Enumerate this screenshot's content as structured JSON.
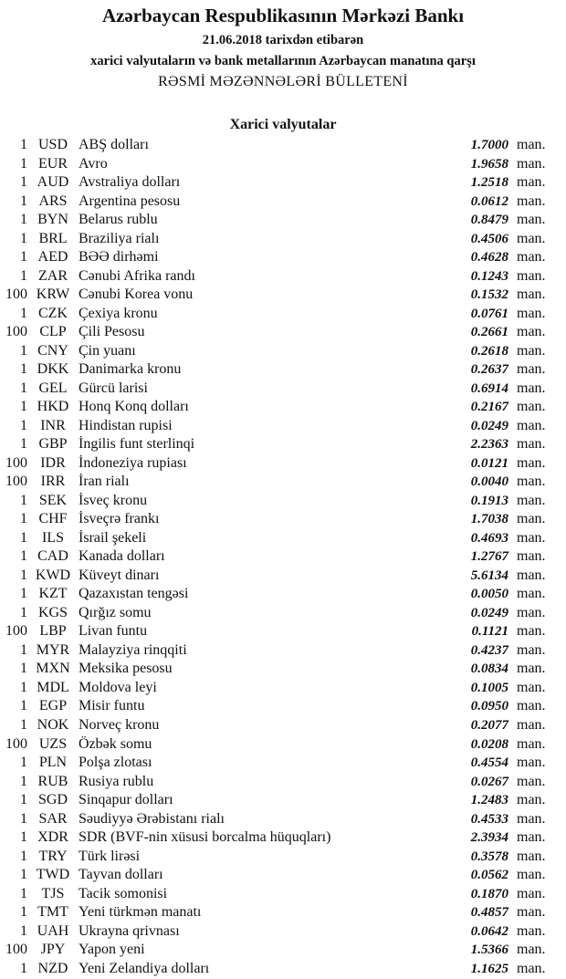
{
  "header": {
    "title": "Azərbaycan Respublikasının Mərkəzi Bankı",
    "date_line": "21.06.2018  tarixdən etibarən",
    "subtitle": "xarici valyutaların və bank metallarının Azərbaycan manatına qarşı",
    "bulletin": "RƏSMİ MƏZƏNNƏLƏRİ BÜLLETENİ"
  },
  "section_title": "Xarici valyutalar",
  "unit": "man.",
  "rows": [
    {
      "amount": "1",
      "code": "USD",
      "name": "ABŞ dolları",
      "rate": "1.7000"
    },
    {
      "amount": "1",
      "code": "EUR",
      "name": "Avro",
      "rate": "1.9658"
    },
    {
      "amount": "1",
      "code": "AUD",
      "name": "Avstraliya dolları",
      "rate": "1.2518"
    },
    {
      "amount": "1",
      "code": "ARS",
      "name": "Argentina pesosu",
      "rate": "0.0612"
    },
    {
      "amount": "1",
      "code": "BYN",
      "name": "Belarus rublu",
      "rate": "0.8479"
    },
    {
      "amount": "1",
      "code": "BRL",
      "name": "Braziliya rialı",
      "rate": "0.4506"
    },
    {
      "amount": "1",
      "code": "AED",
      "name": "BƏƏ dirhəmi",
      "rate": "0.4628"
    },
    {
      "amount": "1",
      "code": "ZAR",
      "name": "Cənubi Afrika randı",
      "rate": "0.1243"
    },
    {
      "amount": "100",
      "code": "KRW",
      "name": "Cənubi Korea vonu",
      "rate": "0.1532"
    },
    {
      "amount": "1",
      "code": "CZK",
      "name": "Çexiya kronu",
      "rate": "0.0761"
    },
    {
      "amount": "100",
      "code": "CLP",
      "name": "Çili Pesosu",
      "rate": "0.2661"
    },
    {
      "amount": "1",
      "code": "CNY",
      "name": "Çin yuanı",
      "rate": "0.2618"
    },
    {
      "amount": "1",
      "code": "DKK",
      "name": "Danimarka kronu",
      "rate": "0.2637"
    },
    {
      "amount": "1",
      "code": "GEL",
      "name": "Gürcü larisi",
      "rate": "0.6914"
    },
    {
      "amount": "1",
      "code": "HKD",
      "name": "Honq Konq dolları",
      "rate": "0.2167"
    },
    {
      "amount": "1",
      "code": "INR",
      "name": "Hindistan rupisi",
      "rate": "0.0249"
    },
    {
      "amount": "1",
      "code": "GBP",
      "name": "İngilis funt sterlinqi",
      "rate": "2.2363"
    },
    {
      "amount": "100",
      "code": "IDR",
      "name": "İndoneziya rupiası",
      "rate": "0.0121"
    },
    {
      "amount": "100",
      "code": "IRR",
      "name": "İran rialı",
      "rate": "0.0040"
    },
    {
      "amount": "1",
      "code": "SEK",
      "name": "İsveç kronu",
      "rate": "0.1913"
    },
    {
      "amount": "1",
      "code": "CHF",
      "name": "İsveçrə frankı",
      "rate": "1.7038"
    },
    {
      "amount": "1",
      "code": "ILS",
      "name": "İsrail şekeli",
      "rate": "0.4693"
    },
    {
      "amount": "1",
      "code": "CAD",
      "name": "Kanada dolları",
      "rate": "1.2767"
    },
    {
      "amount": "1",
      "code": "KWD",
      "name": "Küveyt dinarı",
      "rate": "5.6134"
    },
    {
      "amount": "1",
      "code": "KZT",
      "name": "Qazaxıstan tengəsi",
      "rate": "0.0050"
    },
    {
      "amount": "1",
      "code": "KGS",
      "name": "Qırğız somu",
      "rate": "0.0249"
    },
    {
      "amount": "100",
      "code": "LBP",
      "name": "Livan funtu",
      "rate": "0.1121"
    },
    {
      "amount": "1",
      "code": "MYR",
      "name": "Malayziya rinqqiti",
      "rate": "0.4237"
    },
    {
      "amount": "1",
      "code": "MXN",
      "name": "Meksika pesosu",
      "rate": "0.0834"
    },
    {
      "amount": "1",
      "code": "MDL",
      "name": "Moldova leyi",
      "rate": "0.1005"
    },
    {
      "amount": "1",
      "code": "EGP",
      "name": "Misir funtu",
      "rate": "0.0950"
    },
    {
      "amount": "1",
      "code": "NOK",
      "name": "Norveç kronu",
      "rate": "0.2077"
    },
    {
      "amount": "100",
      "code": "UZS",
      "name": "Özbək somu",
      "rate": "0.0208"
    },
    {
      "amount": "1",
      "code": "PLN",
      "name": "Polşa zlotası",
      "rate": "0.4554"
    },
    {
      "amount": "1",
      "code": "RUB",
      "name": "Rusiya rublu",
      "rate": "0.0267"
    },
    {
      "amount": "1",
      "code": "SGD",
      "name": "Sinqapur dolları",
      "rate": "1.2483"
    },
    {
      "amount": "1",
      "code": "SAR",
      "name": "Səudiyyə Ərəbistanı rialı",
      "rate": "0.4533"
    },
    {
      "amount": "1",
      "code": "XDR",
      "name": "SDR (BVF-nin xüsusi borcalma hüquqları)",
      "rate": "2.3934"
    },
    {
      "amount": "1",
      "code": "TRY",
      "name": "Türk lirəsi",
      "rate": "0.3578"
    },
    {
      "amount": "1",
      "code": "TWD",
      "name": "Tayvan dolları",
      "rate": "0.0562"
    },
    {
      "amount": "1",
      "code": "TJS",
      "name": "Tacik somonisi",
      "rate": "0.1870"
    },
    {
      "amount": "1",
      "code": "TMT",
      "name": "Yeni türkmən manatı",
      "rate": "0.4857"
    },
    {
      "amount": "1",
      "code": "UAH",
      "name": "Ukrayna qrivnası",
      "rate": "0.0642"
    },
    {
      "amount": "100",
      "code": "JPY",
      "name": "Yapon yeni",
      "rate": "1.5366"
    },
    {
      "amount": "1",
      "code": "NZD",
      "name": "Yeni Zelandiya dolları",
      "rate": "1.1625"
    }
  ]
}
